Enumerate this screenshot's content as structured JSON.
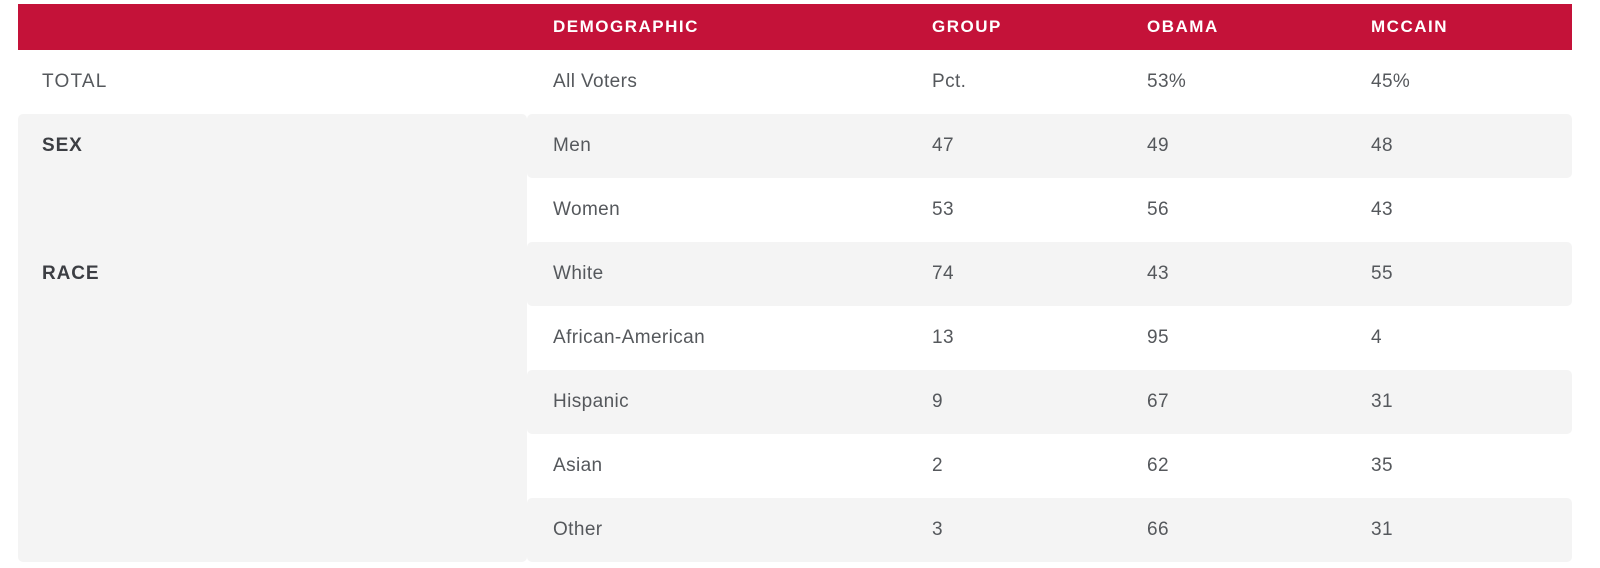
{
  "colors": {
    "header_bg": "#C41239",
    "header_text": "#FFFFFF",
    "row_stripe": "#F4F4F4",
    "body_text": "#55585C",
    "section_text": "#3C3E43"
  },
  "table": {
    "headers": {
      "demographic": "DEMOGRAPHIC",
      "group": "GROUP",
      "obama": "OBAMA",
      "mccain": "MCCAIN"
    },
    "rows": [
      {
        "section": "TOTAL",
        "section_style": "regular",
        "demographic": "All Voters",
        "group": "Pct.",
        "obama": "53%",
        "mccain": "45%",
        "stripe": "white"
      },
      {
        "section": "SEX",
        "section_style": "bold",
        "demographic": "Men",
        "group": "47",
        "obama": "49",
        "mccain": "48",
        "stripe": "gray"
      },
      {
        "section": "",
        "section_style": "none",
        "demographic": "Women",
        "group": "53",
        "obama": "56",
        "mccain": "43",
        "stripe": "white"
      },
      {
        "section": "RACE",
        "section_style": "bold",
        "demographic": "White",
        "group": "74",
        "obama": "43",
        "mccain": "55",
        "stripe": "gray"
      },
      {
        "section": "",
        "section_style": "none",
        "demographic": "African-American",
        "group": "13",
        "obama": "95",
        "mccain": "4",
        "stripe": "white"
      },
      {
        "section": "",
        "section_style": "none",
        "demographic": "Hispanic",
        "group": "9",
        "obama": "67",
        "mccain": "31",
        "stripe": "gray"
      },
      {
        "section": "",
        "section_style": "none",
        "demographic": "Asian",
        "group": "2",
        "obama": "62",
        "mccain": "35",
        "stripe": "white"
      },
      {
        "section": "",
        "section_style": "none",
        "demographic": "Other",
        "group": "3",
        "obama": "66",
        "mccain": "31",
        "stripe": "gray"
      }
    ]
  },
  "chart_data": {
    "type": "table",
    "columns": [
      "",
      "DEMOGRAPHIC",
      "GROUP",
      "OBAMA",
      "MCCAIN"
    ],
    "rows": [
      [
        "TOTAL",
        "All Voters",
        "Pct.",
        "53%",
        "45%"
      ],
      [
        "SEX",
        "Men",
        47,
        49,
        48
      ],
      [
        "",
        "Women",
        53,
        56,
        43
      ],
      [
        "RACE",
        "White",
        74,
        43,
        55
      ],
      [
        "",
        "African-American",
        13,
        95,
        4
      ],
      [
        "",
        "Hispanic",
        9,
        67,
        31
      ],
      [
        "",
        "Asian",
        2,
        62,
        35
      ],
      [
        "",
        "Other",
        3,
        66,
        31
      ]
    ],
    "legend_position": "none",
    "grid": false
  }
}
